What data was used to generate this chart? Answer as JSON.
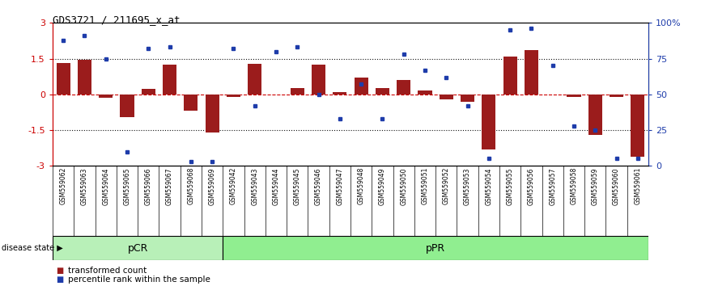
{
  "title": "GDS3721 / 211695_x_at",
  "samples": [
    "GSM559062",
    "GSM559063",
    "GSM559064",
    "GSM559065",
    "GSM559066",
    "GSM559067",
    "GSM559068",
    "GSM559069",
    "GSM559042",
    "GSM559043",
    "GSM559044",
    "GSM559045",
    "GSM559046",
    "GSM559047",
    "GSM559048",
    "GSM559049",
    "GSM559050",
    "GSM559051",
    "GSM559052",
    "GSM559053",
    "GSM559054",
    "GSM559055",
    "GSM559056",
    "GSM559057",
    "GSM559058",
    "GSM559059",
    "GSM559060",
    "GSM559061"
  ],
  "transformed_count": [
    1.3,
    1.45,
    -0.15,
    -0.95,
    0.22,
    1.25,
    -0.7,
    -1.6,
    -0.1,
    1.28,
    0.0,
    0.25,
    1.25,
    0.1,
    0.7,
    0.25,
    0.6,
    0.15,
    -0.2,
    -0.3,
    -2.3,
    1.6,
    1.85,
    0.0,
    -0.1,
    -1.7,
    -0.1,
    -2.6
  ],
  "percentile_rank": [
    88,
    91,
    75,
    10,
    82,
    83,
    3,
    3,
    82,
    42,
    80,
    83,
    50,
    33,
    57,
    33,
    78,
    67,
    62,
    42,
    5,
    95,
    96,
    70,
    28,
    25,
    5,
    5
  ],
  "group_labels": [
    "pCR",
    "pPR"
  ],
  "group_boundaries": [
    0,
    8,
    28
  ],
  "group_colors_light": [
    "#b8f0b8",
    "#90ee90"
  ],
  "bar_color": "#9b1c1c",
  "dot_color": "#1e3caa",
  "hline_color": "#cc0000",
  "dotted_line_color": "#111111",
  "ylim": [
    -3,
    3
  ],
  "yticks_left": [
    -3,
    -1.5,
    0,
    1.5,
    3
  ],
  "yticks_right": [
    0,
    25,
    50,
    75,
    100
  ],
  "background_color": "#ffffff",
  "xtick_bg": "#c8c8c8"
}
